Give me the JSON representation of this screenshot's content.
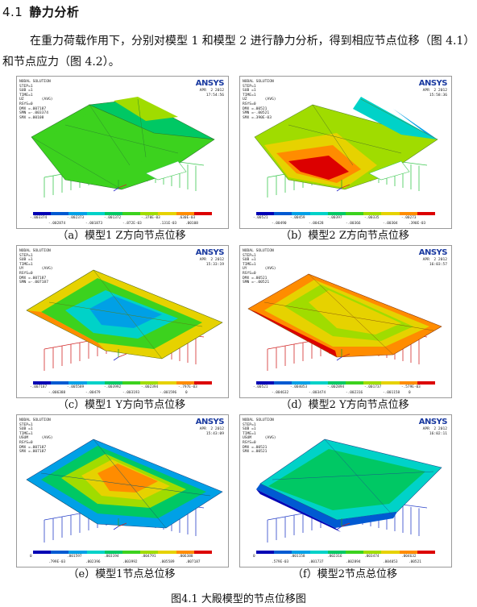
{
  "section": {
    "number": "4.1",
    "title": "静力分析",
    "paragraph": "在重力荷载作用下，分别对模型 1 和模型 2 进行静力分析，得到相应节点位移（图 4.1）和节点应力（图 4.2）。"
  },
  "colors": {
    "contour": [
      "#0000b4",
      "#005ad2",
      "#00a0e6",
      "#00d2c8",
      "#00c864",
      "#3cd21e",
      "#a0dc00",
      "#e6d200",
      "#ff8c00",
      "#dc0000"
    ],
    "frame_green": "#3cc850",
    "frame_red": "#d22828",
    "frame_blue": "#2840c8"
  },
  "logo": {
    "text_a": "AN",
    "text_b": "SYS"
  },
  "panels": [
    {
      "id": "a",
      "caption": "（a）模型1 Z方向节点位移",
      "info": "NODAL SOLUTION\nSTEP=1\nSUB =1\nTIME=1\nUZ        (AVG)\nRSYS=0\nDMX =.007187\nSMN =-.003374\nSMX =.00108",
      "stamp": "APR  2 2012\n17:54:56",
      "legend_top": [
        "-.003374",
        "-.002373",
        "-.001372",
        "-.370E-03",
        ".630E-03"
      ],
      "legend_bottom": [
        "-.002874",
        "-.001873",
        "-.872E-03",
        ".131E-03",
        ".00108"
      ],
      "model": "green"
    },
    {
      "id": "b",
      "caption": "（b）模型2 Z方向节点位移",
      "info": "NODAL SOLUTION\nSTEP=1\nSUB =1\nTIME=1\nUZ        (AVG)\nRSYS=0\nDMX =.00521\nSMN =-.00521\nSMX =.390E-03",
      "stamp": "APR  2 2012\n15:58:36",
      "legend_top": [
        "-.00521",
        "-.00459",
        "-.00397",
        "-.00335",
        "-.00273"
      ],
      "legend_bottom": [
        "-.00490",
        "-.00428",
        "-.00366",
        "-.00304",
        ".390E-03"
      ],
      "model": "zred"
    },
    {
      "id": "c",
      "caption": "（c）模型1 Y方向节点位移",
      "info": "NODAL SOLUTION\nSTEP=1\nSUB =1\nTIME=1\nUY        (AVG)\nRSYS=0\nDMX =.007187\nSMN =-.007187",
      "stamp": "APR  2 2012\n15:33:19",
      "legend_top": [
        "-.007187",
        "-.005589",
        "-.003992",
        "-.002394",
        "-.797E-03"
      ],
      "legend_bottom": [
        "-.006388",
        "-.00479",
        "-.003193",
        "-.001596",
        "0"
      ],
      "model": "blue"
    },
    {
      "id": "d",
      "caption": "（d）模型2 Y方向节点位移",
      "info": "NODAL SOLUTION\nSTEP=1\nSUB =1\nTIME=1\nUY        (AVG)\nRSYS=0\nDMX =.00521\nSMN =-.00521",
      "stamp": "APR  2 2012\n16:03:57",
      "legend_top": [
        "-.00521",
        "-.004053",
        "-.002894",
        "-.001737",
        "-.579E-03"
      ],
      "legend_bottom": [
        "-.004632",
        "-.003474",
        "-.002316",
        "-.001158",
        "0"
      ],
      "model": "redy"
    },
    {
      "id": "e",
      "caption": "（e）模型1节点总位移",
      "info": "NODAL SOLUTION\nSTEP=1\nSUB =1\nTIME=1\nUSUM      (AVG)\nRSYS=0\nDMX =.007187\nSMX =.007187",
      "stamp": "APR  2 2012\n15:43:09",
      "legend_top": [
        "0",
        ".001597",
        ".003194",
        ".004791",
        ".006388"
      ],
      "legend_bottom": [
        ".799E-03",
        ".002396",
        ".003992",
        ".005589",
        ".007187"
      ],
      "model": "total1"
    },
    {
      "id": "f",
      "caption": "（f）模型2节点总位移",
      "info": "NODAL SOLUTION\nSTEP=1\nSUB =1\nTIME=1\nUSUM      (AVG)\nRSYS=0\nDMX =.00521\nSMX =.00521",
      "stamp": "APR  2 2012\n16:02:11",
      "legend_top": [
        "0",
        ".001158",
        ".002316",
        ".003474",
        ".004632"
      ],
      "legend_bottom": [
        ".579E-03",
        ".001737",
        ".002894",
        ".004053",
        ".00521"
      ],
      "model": "total2"
    }
  ],
  "figure_caption": "图4.1 大殿模型的节点位移图"
}
